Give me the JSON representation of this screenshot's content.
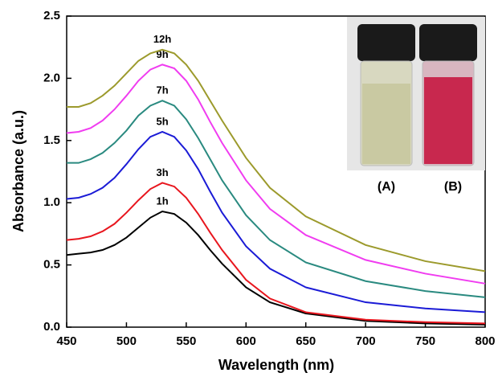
{
  "chart_data": {
    "type": "line",
    "xlabel": "Wavelength (nm)",
    "ylabel": "Absorbance (a.u.)",
    "x": [
      450,
      460,
      470,
      480,
      490,
      500,
      510,
      520,
      530,
      540,
      550,
      560,
      570,
      580,
      600,
      620,
      650,
      700,
      750,
      800
    ],
    "series": [
      {
        "name": "1h",
        "color": "#000000",
        "values": [
          0.58,
          0.59,
          0.6,
          0.62,
          0.66,
          0.72,
          0.8,
          0.88,
          0.93,
          0.91,
          0.84,
          0.74,
          0.62,
          0.51,
          0.32,
          0.2,
          0.11,
          0.05,
          0.03,
          0.02
        ]
      },
      {
        "name": "3h",
        "color": "#e8161e",
        "values": [
          0.7,
          0.71,
          0.73,
          0.77,
          0.83,
          0.92,
          1.02,
          1.11,
          1.16,
          1.13,
          1.04,
          0.91,
          0.76,
          0.62,
          0.38,
          0.23,
          0.12,
          0.06,
          0.04,
          0.03
        ]
      },
      {
        "name": "5h",
        "color": "#1b1bd6",
        "values": [
          1.03,
          1.04,
          1.07,
          1.12,
          1.2,
          1.31,
          1.43,
          1.53,
          1.57,
          1.53,
          1.42,
          1.27,
          1.09,
          0.92,
          0.65,
          0.47,
          0.32,
          0.2,
          0.15,
          0.12
        ]
      },
      {
        "name": "7h",
        "color": "#2a8a80",
        "values": [
          1.32,
          1.32,
          1.35,
          1.4,
          1.48,
          1.58,
          1.7,
          1.78,
          1.82,
          1.78,
          1.67,
          1.52,
          1.35,
          1.18,
          0.9,
          0.7,
          0.52,
          0.37,
          0.29,
          0.24
        ]
      },
      {
        "name": "9h",
        "color": "#f03cf0",
        "values": [
          1.56,
          1.57,
          1.6,
          1.66,
          1.75,
          1.86,
          1.98,
          2.07,
          2.11,
          2.08,
          1.98,
          1.83,
          1.65,
          1.48,
          1.18,
          0.95,
          0.74,
          0.54,
          0.43,
          0.35
        ]
      },
      {
        "name": "12h",
        "color": "#9c9a2c",
        "values": [
          1.77,
          1.77,
          1.8,
          1.86,
          1.94,
          2.04,
          2.14,
          2.2,
          2.23,
          2.2,
          2.11,
          1.98,
          1.82,
          1.66,
          1.36,
          1.12,
          0.89,
          0.66,
          0.53,
          0.45
        ]
      }
    ],
    "xlim": [
      450,
      800
    ],
    "xticks": [
      450,
      500,
      550,
      600,
      650,
      700,
      750,
      800
    ],
    "ylim": [
      0,
      2.5
    ],
    "yticks": [
      {
        "value": 0,
        "label": "0.0"
      },
      0.5,
      {
        "value": 1,
        "label": "1.0"
      },
      1.5,
      {
        "value": 2,
        "label": "2.0"
      },
      2.5
    ],
    "annotations": [
      "(A)",
      "(B)"
    ]
  }
}
